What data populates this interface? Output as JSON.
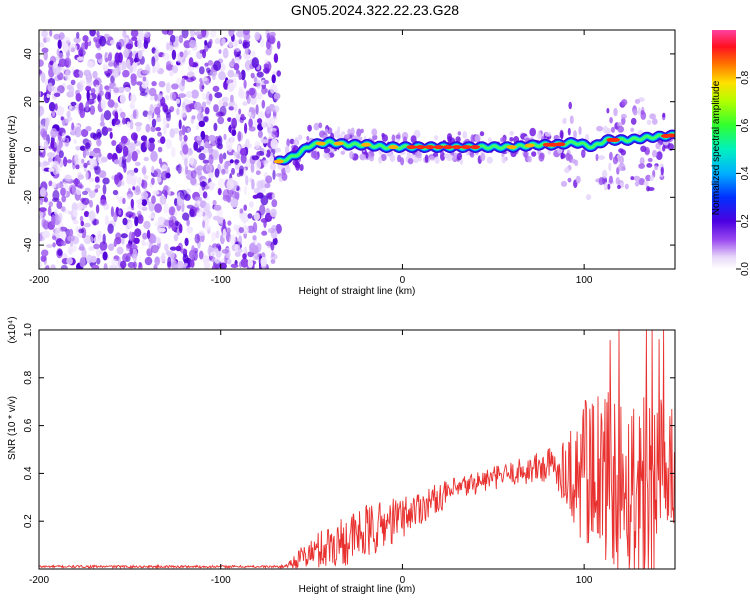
{
  "title": "GN05.2024.322.22.23.G28",
  "chart_data": [
    {
      "type": "heatmap",
      "xlabel": "Height of straight line (km)",
      "ylabel": "Frequency (Hz)",
      "xlim": [
        -200,
        150
      ],
      "ylim": [
        -50,
        50
      ],
      "xticks": [
        -200,
        -100,
        0,
        100
      ],
      "yticks": [
        -40,
        -20,
        0,
        20,
        40
      ],
      "colorbar": {
        "label": "Normalized spectral amplitude",
        "range": [
          0.0,
          1.0
        ],
        "ticks": [
          "0.0",
          "0.2",
          "0.4",
          "0.6",
          "0.8"
        ]
      },
      "features": {
        "noise_region_x": [
          -200,
          -68
        ],
        "ridge": [
          {
            "x": -68,
            "y": -5
          },
          {
            "x": -60,
            "y": -3
          },
          {
            "x": -50,
            "y": 2
          },
          {
            "x": -40,
            "y": 3
          },
          {
            "x": -30,
            "y": 2
          },
          {
            "x": -20,
            "y": 2
          },
          {
            "x": -10,
            "y": 1
          },
          {
            "x": 0,
            "y": 1
          },
          {
            "x": 20,
            "y": 1
          },
          {
            "x": 40,
            "y": 1
          },
          {
            "x": 60,
            "y": 1
          },
          {
            "x": 75,
            "y": 2
          },
          {
            "x": 85,
            "y": 2
          },
          {
            "x": 95,
            "y": 3
          },
          {
            "x": 105,
            "y": 1
          },
          {
            "x": 112,
            "y": 4
          },
          {
            "x": 125,
            "y": 4
          },
          {
            "x": 135,
            "y": 5
          },
          {
            "x": 150,
            "y": 6
          }
        ]
      }
    },
    {
      "type": "line",
      "xlabel": "Height of straight line (km)",
      "ylabel": "SNR (10 * v/v)",
      "y_multiplier": "(x10⁴)",
      "xlim": [
        -200,
        150
      ],
      "ylim": [
        0,
        1.0
      ],
      "xticks": [
        -200,
        -100,
        0,
        100
      ],
      "yticks": [
        "0.2",
        "0.4",
        "0.6",
        "0.8",
        "1.0"
      ],
      "color": "#e8312f",
      "envelope": [
        {
          "x": -200,
          "base": 0.01,
          "amp": 0.005
        },
        {
          "x": -65,
          "base": 0.01,
          "amp": 0.005
        },
        {
          "x": -55,
          "base": 0.05,
          "amp": 0.05
        },
        {
          "x": -40,
          "base": 0.1,
          "amp": 0.1
        },
        {
          "x": -20,
          "base": 0.15,
          "amp": 0.12
        },
        {
          "x": 0,
          "base": 0.22,
          "amp": 0.09
        },
        {
          "x": 20,
          "base": 0.3,
          "amp": 0.06
        },
        {
          "x": 40,
          "base": 0.36,
          "amp": 0.05
        },
        {
          "x": 60,
          "base": 0.4,
          "amp": 0.05
        },
        {
          "x": 80,
          "base": 0.43,
          "amp": 0.08
        },
        {
          "x": 90,
          "base": 0.42,
          "amp": 0.14
        },
        {
          "x": 100,
          "base": 0.38,
          "amp": 0.35
        },
        {
          "x": 120,
          "base": 0.35,
          "amp": 0.4
        },
        {
          "x": 140,
          "base": 0.33,
          "amp": 0.45
        },
        {
          "x": 150,
          "base": 0.3,
          "amp": 0.35
        }
      ]
    }
  ]
}
